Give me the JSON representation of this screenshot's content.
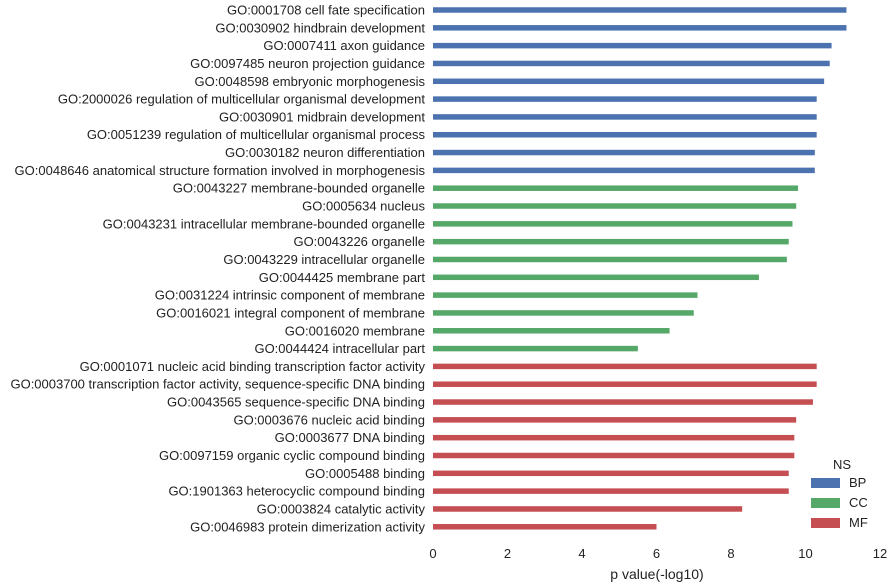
{
  "chart_data": {
    "type": "bar",
    "orientation": "horizontal",
    "xlabel": "p value(-log10)",
    "xlim": [
      0,
      12
    ],
    "xticks": [
      0,
      2,
      4,
      6,
      8,
      10,
      12
    ],
    "grid": false,
    "legend": {
      "title": "NS",
      "placement": "bottom-right",
      "entries": [
        {
          "name": "BP",
          "color": "#4c72b0"
        },
        {
          "name": "CC",
          "color": "#55a868"
        },
        {
          "name": "MF",
          "color": "#c44e52"
        }
      ]
    },
    "bars": [
      {
        "label": "GO:0001708 cell fate specification",
        "value": 11.1,
        "group": "BP"
      },
      {
        "label": "GO:0030902 hindbrain development",
        "value": 11.1,
        "group": "BP"
      },
      {
        "label": "GO:0007411 axon guidance",
        "value": 10.7,
        "group": "BP"
      },
      {
        "label": "GO:0097485 neuron projection guidance",
        "value": 10.65,
        "group": "BP"
      },
      {
        "label": "GO:0048598 embryonic morphogenesis",
        "value": 10.5,
        "group": "BP"
      },
      {
        "label": "GO:2000026 regulation of multicellular organismal development",
        "value": 10.3,
        "group": "BP"
      },
      {
        "label": "GO:0030901 midbrain development",
        "value": 10.3,
        "group": "BP"
      },
      {
        "label": "GO:0051239 regulation of multicellular organismal process",
        "value": 10.3,
        "group": "BP"
      },
      {
        "label": "GO:0030182 neuron differentiation",
        "value": 10.25,
        "group": "BP"
      },
      {
        "label": "GO:0048646 anatomical structure formation involved in morphogenesis",
        "value": 10.25,
        "group": "BP"
      },
      {
        "label": "GO:0043227 membrane-bounded organelle",
        "value": 9.8,
        "group": "CC"
      },
      {
        "label": "GO:0005634 nucleus",
        "value": 9.75,
        "group": "CC"
      },
      {
        "label": "GO:0043231 intracellular membrane-bounded organelle",
        "value": 9.65,
        "group": "CC"
      },
      {
        "label": "GO:0043226 organelle",
        "value": 9.55,
        "group": "CC"
      },
      {
        "label": "GO:0043229 intracellular organelle",
        "value": 9.5,
        "group": "CC"
      },
      {
        "label": "GO:0044425 membrane part",
        "value": 8.75,
        "group": "CC"
      },
      {
        "label": "GO:0031224 intrinsic component of membrane",
        "value": 7.1,
        "group": "CC"
      },
      {
        "label": "GO:0016021 integral component of membrane",
        "value": 7.0,
        "group": "CC"
      },
      {
        "label": "GO:0016020 membrane",
        "value": 6.35,
        "group": "CC"
      },
      {
        "label": "GO:0044424 intracellular part",
        "value": 5.5,
        "group": "CC"
      },
      {
        "label": "GO:0001071 nucleic acid binding transcription factor activity",
        "value": 10.3,
        "group": "MF"
      },
      {
        "label": "GO:0003700 transcription factor activity, sequence-specific DNA binding",
        "value": 10.3,
        "group": "MF"
      },
      {
        "label": "GO:0043565 sequence-specific DNA binding",
        "value": 10.2,
        "group": "MF"
      },
      {
        "label": "GO:0003676 nucleic acid binding",
        "value": 9.75,
        "group": "MF"
      },
      {
        "label": "GO:0003677 DNA binding",
        "value": 9.7,
        "group": "MF"
      },
      {
        "label": "GO:0097159 organic cyclic compound binding",
        "value": 9.7,
        "group": "MF"
      },
      {
        "label": "GO:0005488 binding",
        "value": 9.55,
        "group": "MF"
      },
      {
        "label": "GO:1901363 heterocyclic compound binding",
        "value": 9.55,
        "group": "MF"
      },
      {
        "label": "GO:0003824 catalytic activity",
        "value": 8.3,
        "group": "MF"
      },
      {
        "label": "GO:0046983 protein dimerization activity",
        "value": 6.0,
        "group": "MF"
      }
    ]
  }
}
